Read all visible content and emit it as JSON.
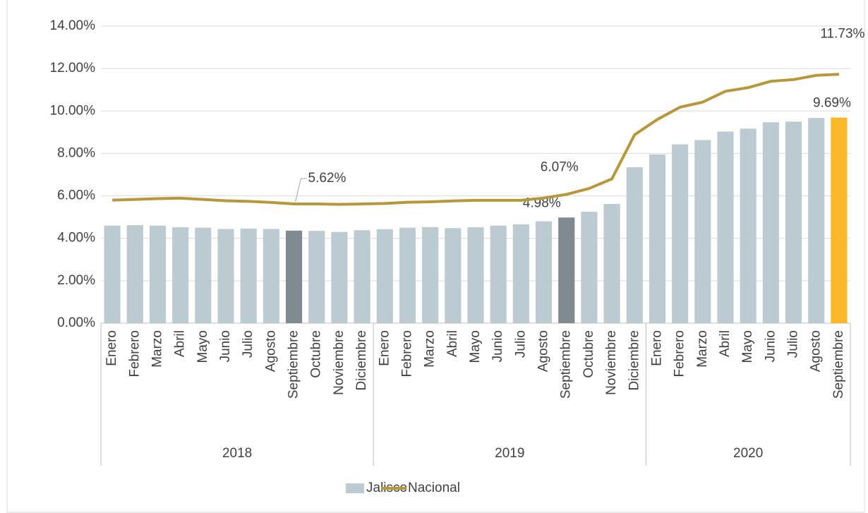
{
  "chart_data": {
    "type": "bar-line",
    "categories": [
      "Enero",
      "Febrero",
      "Marzo",
      "Abril",
      "Mayo",
      "Junio",
      "Julio",
      "Agosto",
      "Septiembre",
      "Octubre",
      "Noviembre",
      "Diciembre",
      "Enero",
      "Febrero",
      "Marzo",
      "Abril",
      "Mayo",
      "Junio",
      "Julio",
      "Agosto",
      "Septiembre",
      "Octubre",
      "Noviembre",
      "Diciembre",
      "Enero",
      "Febrero",
      "Marzo",
      "Abril",
      "Mayo",
      "Junio",
      "Julio",
      "Agosto",
      "Septiembre"
    ],
    "x_groups": [
      {
        "label": "2018",
        "size": 12
      },
      {
        "label": "2019",
        "size": 12
      },
      {
        "label": "2020",
        "size": 9
      }
    ],
    "series": [
      {
        "name": "Jalisco",
        "type": "bar",
        "color": "#bccbd2",
        "colors": [
          "#bccbd2",
          "#bccbd2",
          "#bccbd2",
          "#bccbd2",
          "#bccbd2",
          "#bccbd2",
          "#bccbd2",
          "#bccbd2",
          "#7f8a91",
          "#bccbd2",
          "#bccbd2",
          "#bccbd2",
          "#bccbd2",
          "#bccbd2",
          "#bccbd2",
          "#bccbd2",
          "#bccbd2",
          "#bccbd2",
          "#bccbd2",
          "#bccbd2",
          "#7f8a91",
          "#bccbd2",
          "#bccbd2",
          "#bccbd2",
          "#bccbd2",
          "#bccbd2",
          "#bccbd2",
          "#bccbd2",
          "#bccbd2",
          "#bccbd2",
          "#bccbd2",
          "#bccbd2",
          "#fbb829"
        ],
        "values": [
          4.6,
          4.62,
          4.6,
          4.52,
          4.5,
          4.44,
          4.46,
          4.44,
          4.36,
          4.35,
          4.3,
          4.38,
          4.43,
          4.5,
          4.53,
          4.48,
          4.52,
          4.6,
          4.66,
          4.8,
          4.98,
          5.25,
          5.62,
          7.35,
          7.95,
          8.43,
          8.63,
          9.03,
          9.17,
          9.47,
          9.5,
          9.67,
          9.69
        ],
        "value_labels": [
          null,
          null,
          null,
          null,
          null,
          null,
          null,
          null,
          null,
          null,
          null,
          null,
          null,
          null,
          null,
          null,
          null,
          null,
          null,
          null,
          "4.98%",
          null,
          null,
          null,
          null,
          null,
          null,
          null,
          null,
          null,
          null,
          null,
          "9.69%"
        ]
      },
      {
        "name": "Nacional",
        "type": "line",
        "color": "#b8973a",
        "values": [
          5.8,
          5.83,
          5.87,
          5.89,
          5.83,
          5.77,
          5.74,
          5.69,
          5.62,
          5.62,
          5.6,
          5.62,
          5.64,
          5.7,
          5.72,
          5.76,
          5.79,
          5.79,
          5.79,
          5.9,
          6.07,
          6.35,
          6.8,
          8.88,
          9.6,
          10.18,
          10.42,
          10.93,
          11.1,
          11.4,
          11.48,
          11.68,
          11.73
        ],
        "value_labels": [
          null,
          null,
          null,
          null,
          null,
          null,
          null,
          null,
          "5.62%",
          null,
          null,
          null,
          null,
          null,
          null,
          null,
          null,
          null,
          null,
          null,
          "6.07%",
          null,
          null,
          null,
          null,
          null,
          null,
          null,
          null,
          null,
          null,
          null,
          "11.73%"
        ]
      }
    ],
    "ylim": [
      0,
      14
    ],
    "yticks": [
      {
        "value": 0,
        "label": "0.00%"
      },
      {
        "value": 2,
        "label": "2.00%"
      },
      {
        "value": 4,
        "label": "4.00%"
      },
      {
        "value": 6,
        "label": "6.00%"
      },
      {
        "value": 8,
        "label": "8.00%"
      },
      {
        "value": 10,
        "label": "10.00%"
      },
      {
        "value": 12,
        "label": "12.00%"
      },
      {
        "value": 14,
        "label": "14.00%"
      }
    ],
    "grid": true,
    "legend": "bottom"
  }
}
